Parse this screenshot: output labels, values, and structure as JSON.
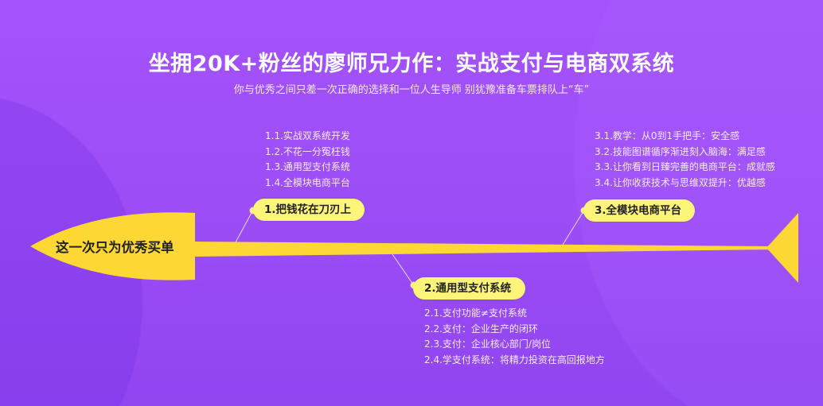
{
  "header": {
    "title": "坐拥20K+粉丝的廖师兄力作：实战支付与电商双系统",
    "subtitle": "你与优秀之间只差一次正确的选择和一位人生导师 别犹豫准备车票排队上“车”"
  },
  "colors": {
    "background": "#a553fb",
    "accent": "#fdd835",
    "pill": "#fdf57a"
  },
  "fishbone": {
    "head": "这一次只为优秀买单",
    "branches": [
      {
        "label": "1.把钱花在刀刃上",
        "items": [
          "1.1.实战双系统开发",
          "1.2.不花一分冤枉钱",
          "1.3.通用型支付系统",
          "1.4.全模块电商平台"
        ]
      },
      {
        "label": "2.通用型支付系统",
        "items": [
          "2.1.支付功能≠支付系统",
          "2.2.支付：企业生产的闭环",
          "2.3.支付：企业核心部门/岗位",
          "2.4.学支付系统：将精力投资在高回报地方"
        ]
      },
      {
        "label": "3.全模块电商平台",
        "items": [
          "3.1.教学：从0到1手把手：安全感",
          "3.2.技能图谱循序渐进刻入脑海：满足感",
          "3.3.让你看到日臻完善的电商平台：成就感",
          "3.4.让你收获技术与思维双提升：优越感"
        ]
      }
    ]
  }
}
